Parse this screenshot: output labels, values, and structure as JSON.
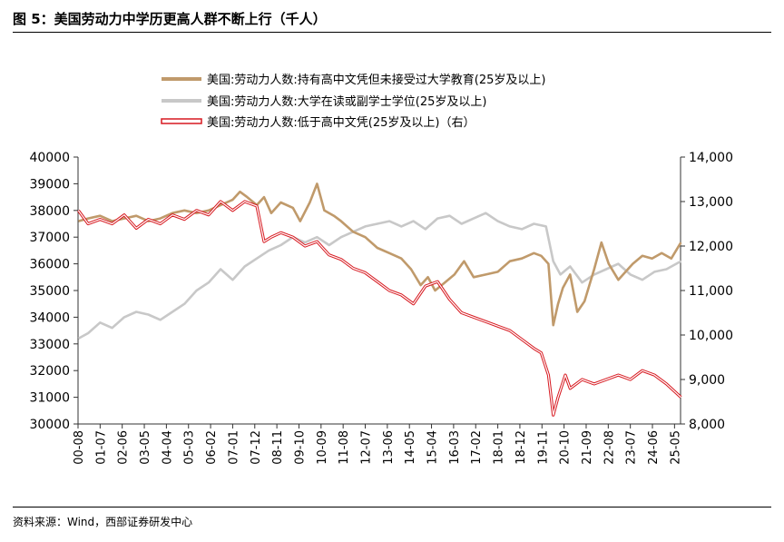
{
  "figure": {
    "title": "图 5：美国劳动力中学历更高人群不断上行（千人）",
    "source": "资料来源：Wind，西部证券研发中心"
  },
  "colors": {
    "brown": "#c09a6b",
    "gray": "#c8c8c8",
    "red": "#d71920",
    "axis": "#333333"
  },
  "chart_data": {
    "type": "line",
    "title": "",
    "legend": [
      "美国:劳动力人数:持有高中文凭但未接受过大学教育(25岁及以上)",
      "美国:劳动力人数:大学在读或副学士学位(25岁及以上)",
      "美国:劳动力人数:低于高中文凭(25岁及以上)（右）"
    ],
    "legend_position": "top-center",
    "x_ticks": [
      "00-08",
      "01-07",
      "02-06",
      "03-05",
      "04-04",
      "05-03",
      "06-02",
      "07-01",
      "07-12",
      "08-11",
      "09-10",
      "10-09",
      "11-08",
      "12-07",
      "13-06",
      "14-05",
      "15-04",
      "16-03",
      "17-02",
      "18-01",
      "18-12",
      "19-11",
      "20-10",
      "21-09",
      "22-08",
      "23-07",
      "24-06",
      "25-05"
    ],
    "x_range": [
      "2000-08",
      "2025-08"
    ],
    "y_left": {
      "min": 30000,
      "max": 40000,
      "step": 1000,
      "ticks": [
        "30000",
        "31000",
        "32000",
        "33000",
        "34000",
        "35000",
        "36000",
        "37000",
        "38000",
        "39000",
        "40000"
      ]
    },
    "y_right": {
      "min": 8000,
      "max": 14000,
      "step": 1000,
      "ticks": [
        "8,000",
        "9,000",
        "10,000",
        "11,000",
        "12,000",
        "13,000",
        "14,000"
      ]
    },
    "series": [
      {
        "name": "持有高中文凭但未接受过大学教育",
        "axis": "left",
        "color_key": "brown",
        "points": [
          [
            2000.6,
            37600
          ],
          [
            2001.0,
            37700
          ],
          [
            2001.5,
            37800
          ],
          [
            2002.0,
            37600
          ],
          [
            2002.5,
            37700
          ],
          [
            2003.0,
            37800
          ],
          [
            2003.5,
            37600
          ],
          [
            2004.0,
            37700
          ],
          [
            2004.5,
            37900
          ],
          [
            2005.0,
            38000
          ],
          [
            2005.5,
            37900
          ],
          [
            2006.0,
            38000
          ],
          [
            2006.5,
            38200
          ],
          [
            2007.0,
            38400
          ],
          [
            2007.3,
            38700
          ],
          [
            2007.6,
            38500
          ],
          [
            2008.0,
            38200
          ],
          [
            2008.3,
            38500
          ],
          [
            2008.6,
            37900
          ],
          [
            2009.0,
            38300
          ],
          [
            2009.5,
            38100
          ],
          [
            2009.8,
            37600
          ],
          [
            2010.2,
            38300
          ],
          [
            2010.5,
            39000
          ],
          [
            2010.8,
            38000
          ],
          [
            2011.2,
            37800
          ],
          [
            2011.5,
            37600
          ],
          [
            2012.0,
            37200
          ],
          [
            2012.5,
            37000
          ],
          [
            2013.0,
            36600
          ],
          [
            2013.5,
            36400
          ],
          [
            2014.0,
            36200
          ],
          [
            2014.4,
            35800
          ],
          [
            2014.8,
            35200
          ],
          [
            2015.1,
            35500
          ],
          [
            2015.4,
            35000
          ],
          [
            2015.8,
            35300
          ],
          [
            2016.2,
            35600
          ],
          [
            2016.6,
            36100
          ],
          [
            2017.0,
            35500
          ],
          [
            2017.5,
            35600
          ],
          [
            2018.0,
            35700
          ],
          [
            2018.5,
            36100
          ],
          [
            2019.0,
            36200
          ],
          [
            2019.5,
            36400
          ],
          [
            2019.8,
            36300
          ],
          [
            2020.1,
            36000
          ],
          [
            2020.3,
            33700
          ],
          [
            2020.5,
            34500
          ],
          [
            2020.7,
            35100
          ],
          [
            2021.0,
            35600
          ],
          [
            2021.3,
            34200
          ],
          [
            2021.6,
            34600
          ],
          [
            2022.0,
            35800
          ],
          [
            2022.3,
            36800
          ],
          [
            2022.6,
            36000
          ],
          [
            2023.0,
            35400
          ],
          [
            2023.3,
            35700
          ],
          [
            2023.6,
            36000
          ],
          [
            2024.0,
            36300
          ],
          [
            2024.4,
            36200
          ],
          [
            2024.8,
            36400
          ],
          [
            2025.2,
            36200
          ],
          [
            2025.6,
            36800
          ]
        ]
      },
      {
        "name": "大学在读或副学士学位",
        "axis": "left",
        "color_key": "gray",
        "points": [
          [
            2000.6,
            33200
          ],
          [
            2001.0,
            33400
          ],
          [
            2001.5,
            33800
          ],
          [
            2002.0,
            33600
          ],
          [
            2002.5,
            34000
          ],
          [
            2003.0,
            34200
          ],
          [
            2003.5,
            34100
          ],
          [
            2004.0,
            33900
          ],
          [
            2004.5,
            34200
          ],
          [
            2005.0,
            34500
          ],
          [
            2005.5,
            35000
          ],
          [
            2006.0,
            35300
          ],
          [
            2006.5,
            35800
          ],
          [
            2007.0,
            35400
          ],
          [
            2007.5,
            35900
          ],
          [
            2008.0,
            36200
          ],
          [
            2008.5,
            36500
          ],
          [
            2009.0,
            36700
          ],
          [
            2009.5,
            37000
          ],
          [
            2010.0,
            36800
          ],
          [
            2010.5,
            37000
          ],
          [
            2011.0,
            36700
          ],
          [
            2011.5,
            37000
          ],
          [
            2012.0,
            37200
          ],
          [
            2012.5,
            37400
          ],
          [
            2013.0,
            37500
          ],
          [
            2013.5,
            37600
          ],
          [
            2014.0,
            37400
          ],
          [
            2014.5,
            37600
          ],
          [
            2015.0,
            37300
          ],
          [
            2015.5,
            37700
          ],
          [
            2016.0,
            37800
          ],
          [
            2016.5,
            37500
          ],
          [
            2017.0,
            37700
          ],
          [
            2017.5,
            37900
          ],
          [
            2018.0,
            37600
          ],
          [
            2018.5,
            37400
          ],
          [
            2019.0,
            37300
          ],
          [
            2019.5,
            37500
          ],
          [
            2020.0,
            37400
          ],
          [
            2020.3,
            36100
          ],
          [
            2020.6,
            35600
          ],
          [
            2021.0,
            35900
          ],
          [
            2021.5,
            35300
          ],
          [
            2022.0,
            35600
          ],
          [
            2022.5,
            35800
          ],
          [
            2023.0,
            36000
          ],
          [
            2023.5,
            35600
          ],
          [
            2024.0,
            35400
          ],
          [
            2024.5,
            35700
          ],
          [
            2025.0,
            35800
          ],
          [
            2025.6,
            36100
          ]
        ]
      },
      {
        "name": "低于高中文凭（右）",
        "axis": "right",
        "color_key": "red",
        "points": [
          [
            2000.6,
            12800
          ],
          [
            2001.0,
            12500
          ],
          [
            2001.5,
            12600
          ],
          [
            2002.0,
            12500
          ],
          [
            2002.5,
            12700
          ],
          [
            2003.0,
            12400
          ],
          [
            2003.5,
            12600
          ],
          [
            2004.0,
            12500
          ],
          [
            2004.5,
            12700
          ],
          [
            2005.0,
            12600
          ],
          [
            2005.5,
            12800
          ],
          [
            2006.0,
            12700
          ],
          [
            2006.5,
            13000
          ],
          [
            2007.0,
            12800
          ],
          [
            2007.5,
            13000
          ],
          [
            2008.0,
            12900
          ],
          [
            2008.3,
            12100
          ],
          [
            2008.6,
            12200
          ],
          [
            2009.0,
            12300
          ],
          [
            2009.5,
            12200
          ],
          [
            2010.0,
            12000
          ],
          [
            2010.5,
            12100
          ],
          [
            2011.0,
            11800
          ],
          [
            2011.5,
            11700
          ],
          [
            2012.0,
            11500
          ],
          [
            2012.5,
            11400
          ],
          [
            2013.0,
            11200
          ],
          [
            2013.5,
            11000
          ],
          [
            2014.0,
            10900
          ],
          [
            2014.5,
            10700
          ],
          [
            2015.0,
            11100
          ],
          [
            2015.5,
            11200
          ],
          [
            2016.0,
            10800
          ],
          [
            2016.5,
            10500
          ],
          [
            2017.0,
            10400
          ],
          [
            2017.5,
            10300
          ],
          [
            2018.0,
            10200
          ],
          [
            2018.5,
            10100
          ],
          [
            2019.0,
            9900
          ],
          [
            2019.5,
            9700
          ],
          [
            2019.8,
            9600
          ],
          [
            2020.1,
            9100
          ],
          [
            2020.3,
            8200
          ],
          [
            2020.5,
            8600
          ],
          [
            2020.8,
            9100
          ],
          [
            2021.0,
            8800
          ],
          [
            2021.5,
            9000
          ],
          [
            2022.0,
            8900
          ],
          [
            2022.5,
            9000
          ],
          [
            2023.0,
            9100
          ],
          [
            2023.5,
            9000
          ],
          [
            2024.0,
            9200
          ],
          [
            2024.5,
            9100
          ],
          [
            2025.0,
            8900
          ],
          [
            2025.4,
            8700
          ],
          [
            2025.6,
            8600
          ]
        ]
      }
    ]
  }
}
